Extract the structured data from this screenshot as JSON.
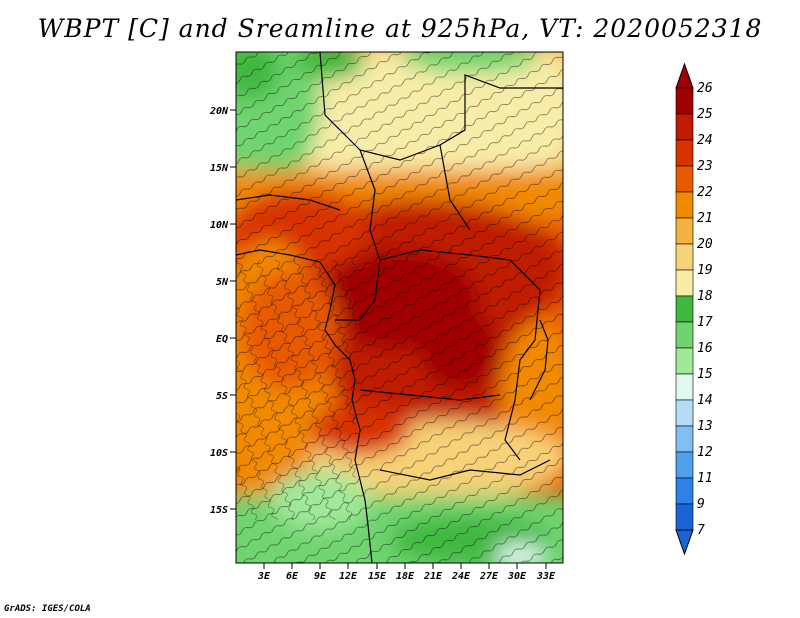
{
  "title": "WBPT [C] and Sreamline at 925hPa, VT: 2020052318",
  "footer": "GrADS: IGES/COLA",
  "map": {
    "lat_ticks": [
      "20N",
      "15N",
      "10N",
      "5N",
      "EQ",
      "5S",
      "10S",
      "15S"
    ],
    "lon_ticks": [
      "3E",
      "6E",
      "9E",
      "12E",
      "15E",
      "18E",
      "21E",
      "24E",
      "27E",
      "30E",
      "33E"
    ]
  },
  "colorbar": {
    "labels": [
      "26",
      "25",
      "24",
      "23",
      "22",
      "21",
      "20",
      "19",
      "18",
      "17",
      "16",
      "15",
      "14",
      "13",
      "12",
      "11",
      "9",
      "7"
    ],
    "colors": [
      "#a00000",
      "#c01a00",
      "#d83200",
      "#e85a00",
      "#f28a00",
      "#f5b240",
      "#f7d278",
      "#f8eda8",
      "#3fb83f",
      "#6fd46f",
      "#a0e89a",
      "#e0f8f0",
      "#b4dcf8",
      "#82bef4",
      "#50a0ee",
      "#2c82e6",
      "#1a64d8"
    ]
  }
}
